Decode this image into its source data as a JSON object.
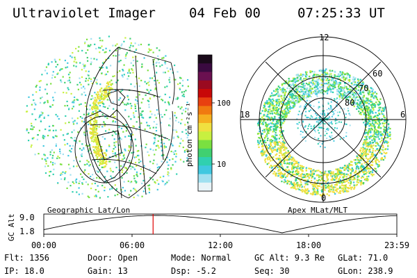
{
  "header": {
    "instrument": "Ultraviolet Imager",
    "date": "04 Feb 00",
    "time": "07:25:33 UT"
  },
  "colorbar": {
    "unit_label": "photon cm⁻²s⁻¹",
    "ticks": [
      "100",
      "10"
    ],
    "colors": [
      "#1a0a1a",
      "#3a0a40",
      "#6a1050",
      "#9a0a20",
      "#c80808",
      "#e84010",
      "#f07a10",
      "#f5b020",
      "#f0e040",
      "#c8f040",
      "#7ae040",
      "#40d070",
      "#30d0b0",
      "#40c8e0",
      "#a0e0f0",
      "#e8f4f8"
    ]
  },
  "left_panel": {
    "label": "Geographic Lat/Lon"
  },
  "right_panel": {
    "label": "Apex MLat/MLT",
    "mlt_labels": {
      "top": "12",
      "left": "18",
      "right": "6",
      "bottom": "0"
    },
    "lat_labels": [
      "60",
      "70",
      "80"
    ]
  },
  "timeline": {
    "axis_label": "GC Alt",
    "y_ticks": [
      "9.0",
      "1.8"
    ],
    "x_ticks": [
      "00:00",
      "06:00",
      "12:00",
      "18:00",
      "23:59"
    ],
    "current_time_hours": 7.43,
    "marker_color": "#e00000"
  },
  "footer": {
    "flt": "Flt: 1356",
    "ip": "IP: 18.0",
    "door": "Door: Open",
    "gain": "Gain: 13",
    "mode": "Mode: Normal",
    "dsp": "Dsp:    -5.2",
    "gc_alt": "GC Alt: 9.3 Re",
    "seq": "Seq: 30",
    "glat": "GLat:  71.0",
    "glon": "GLon: 238.9"
  }
}
